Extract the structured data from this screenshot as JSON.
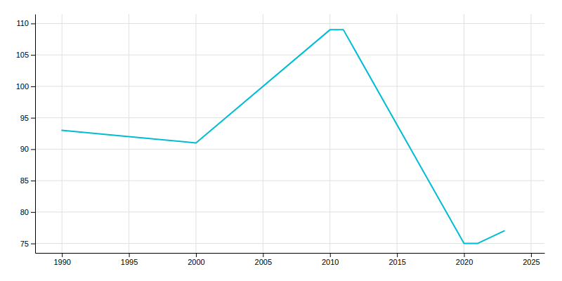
{
  "chart_data": {
    "type": "line",
    "x": [
      1990,
      1995,
      2000,
      2010,
      2011,
      2020,
      2021,
      2023
    ],
    "values": [
      93,
      92,
      91,
      109,
      109,
      75,
      75,
      77
    ],
    "color": "#00bcd4",
    "xlim": [
      1988,
      2026
    ],
    "ylim": [
      73.5,
      111.5
    ],
    "xticks": [
      1990,
      1995,
      2000,
      2005,
      2010,
      2015,
      2020,
      2025
    ],
    "yticks": [
      75,
      80,
      85,
      90,
      95,
      100,
      105,
      110
    ],
    "grid": true
  }
}
